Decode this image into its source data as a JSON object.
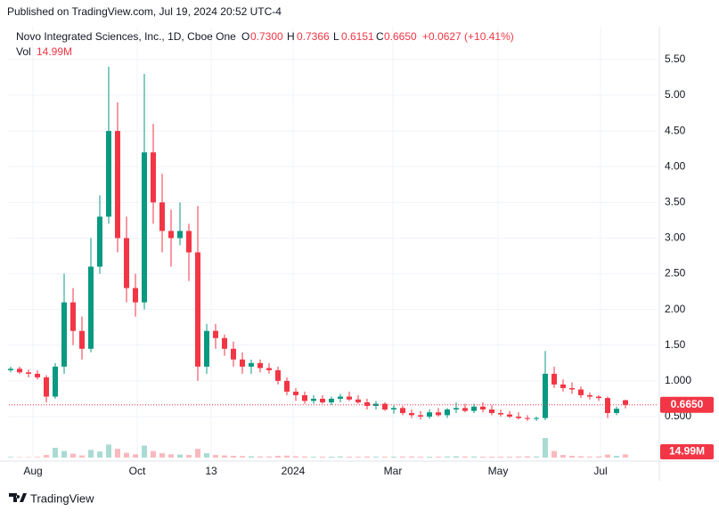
{
  "published": "Published on TradingView.com, Jul 19, 2024 20:52 UTC-4",
  "footer": "TradingView",
  "chart_data": {
    "type": "candlestick",
    "title": "Novo Integrated Sciences, Inc., 1D, Cboe One",
    "ohlc_header": {
      "o_label": "O",
      "open": "0.7300",
      "h_label": "H",
      "high": "0.7366",
      "l_label": "L",
      "low": "0.6151",
      "c_label": "C",
      "close": "0.6650",
      "change": "+0.0627 (+10.41%)"
    },
    "volume_title": "Vol",
    "volume_header": "14.99M",
    "up_color": "#089981",
    "down_color": "#f23645",
    "grid": true,
    "ylim": [
      -0.086,
      5.96
    ],
    "yticks": [
      {
        "value": 0.5,
        "label": "0.500"
      },
      {
        "value": 1,
        "label": "1.000"
      },
      {
        "value": 1.5,
        "label": "1.50"
      },
      {
        "value": 2,
        "label": "2.00"
      },
      {
        "value": 2.5,
        "label": "2.50"
      },
      {
        "value": 3,
        "label": "3.00"
      },
      {
        "value": 3.5,
        "label": "3.50"
      },
      {
        "value": 4,
        "label": "4.00"
      },
      {
        "value": 4.5,
        "label": "4.50"
      },
      {
        "value": 5,
        "label": "5.00"
      },
      {
        "value": 5.5,
        "label": "5.50"
      }
    ],
    "xlim": [
      -0.2,
      72.6
    ],
    "xticks": [
      {
        "value": 2.5,
        "label": "Aug"
      },
      {
        "value": 14.2,
        "label": "Oct"
      },
      {
        "value": 22.5,
        "label": "13"
      },
      {
        "value": 31.7,
        "label": "2024"
      },
      {
        "value": 42.9,
        "label": "Mar"
      },
      {
        "value": 54.7,
        "label": "May"
      },
      {
        "value": 66.2,
        "label": "Jul"
      }
    ],
    "last_price": {
      "value": 0.665,
      "label": "0.6650"
    },
    "last_volume": {
      "value": 14.99,
      "label": "14.99M"
    },
    "candles": [
      [
        1.15,
        1.2,
        1.12,
        1.17
      ],
      [
        1.17,
        1.2,
        1.1,
        1.12
      ],
      [
        1.12,
        1.16,
        1.05,
        1.1
      ],
      [
        1.1,
        1.15,
        1.02,
        1.05
      ],
      [
        1.05,
        1.08,
        0.7,
        0.78
      ],
      [
        0.78,
        1.25,
        0.75,
        1.2
      ],
      [
        1.2,
        2.5,
        1.1,
        2.1
      ],
      [
        2.1,
        2.3,
        1.5,
        1.7
      ],
      [
        1.7,
        1.9,
        1.3,
        1.45
      ],
      [
        1.45,
        3.0,
        1.4,
        2.6
      ],
      [
        2.6,
        3.6,
        2.5,
        3.3
      ],
      [
        3.3,
        5.4,
        3.2,
        4.5
      ],
      [
        4.5,
        4.9,
        2.8,
        3.0
      ],
      [
        3.0,
        3.3,
        2.1,
        2.3
      ],
      [
        2.3,
        2.5,
        1.9,
        2.1
      ],
      [
        2.1,
        5.3,
        2.0,
        4.2
      ],
      [
        4.2,
        4.6,
        3.2,
        3.5
      ],
      [
        3.5,
        3.9,
        2.8,
        3.1
      ],
      [
        3.1,
        3.4,
        2.6,
        3.0
      ],
      [
        3.0,
        3.5,
        2.9,
        3.1
      ],
      [
        3.1,
        3.2,
        2.4,
        2.8
      ],
      [
        2.8,
        3.45,
        1.0,
        1.2
      ],
      [
        1.2,
        1.8,
        1.1,
        1.7
      ],
      [
        1.7,
        1.8,
        1.45,
        1.6
      ],
      [
        1.6,
        1.65,
        1.35,
        1.45
      ],
      [
        1.45,
        1.55,
        1.2,
        1.3
      ],
      [
        1.3,
        1.4,
        1.1,
        1.2
      ],
      [
        1.2,
        1.3,
        1.1,
        1.25
      ],
      [
        1.25,
        1.3,
        1.12,
        1.18
      ],
      [
        1.18,
        1.25,
        1.1,
        1.15
      ],
      [
        1.15,
        1.2,
        0.95,
        1.0
      ],
      [
        1.0,
        1.05,
        0.8,
        0.85
      ],
      [
        0.85,
        0.9,
        0.72,
        0.8
      ],
      [
        0.8,
        0.85,
        0.68,
        0.72
      ],
      [
        0.72,
        0.8,
        0.68,
        0.75
      ],
      [
        0.75,
        0.8,
        0.68,
        0.7
      ],
      [
        0.7,
        0.78,
        0.66,
        0.75
      ],
      [
        0.75,
        0.82,
        0.7,
        0.78
      ],
      [
        0.78,
        0.85,
        0.72,
        0.74
      ],
      [
        0.74,
        0.8,
        0.68,
        0.7
      ],
      [
        0.7,
        0.75,
        0.6,
        0.65
      ],
      [
        0.65,
        0.72,
        0.6,
        0.68
      ],
      [
        0.68,
        0.7,
        0.58,
        0.6
      ],
      [
        0.6,
        0.66,
        0.54,
        0.62
      ],
      [
        0.62,
        0.65,
        0.52,
        0.55
      ],
      [
        0.55,
        0.6,
        0.48,
        0.52
      ],
      [
        0.52,
        0.58,
        0.46,
        0.5
      ],
      [
        0.5,
        0.6,
        0.47,
        0.56
      ],
      [
        0.56,
        0.62,
        0.5,
        0.52
      ],
      [
        0.52,
        0.62,
        0.48,
        0.6
      ],
      [
        0.6,
        0.7,
        0.55,
        0.62
      ],
      [
        0.62,
        0.68,
        0.56,
        0.58
      ],
      [
        0.58,
        0.68,
        0.55,
        0.64
      ],
      [
        0.64,
        0.7,
        0.56,
        0.6
      ],
      [
        0.6,
        0.66,
        0.52,
        0.55
      ],
      [
        0.55,
        0.6,
        0.5,
        0.53
      ],
      [
        0.53,
        0.58,
        0.48,
        0.5
      ],
      [
        0.5,
        0.56,
        0.46,
        0.48
      ],
      [
        0.48,
        0.52,
        0.44,
        0.47
      ],
      [
        0.47,
        0.5,
        0.44,
        0.48
      ],
      [
        0.48,
        1.42,
        0.45,
        1.1
      ],
      [
        1.1,
        1.2,
        0.9,
        0.95
      ],
      [
        0.95,
        1.02,
        0.85,
        0.9
      ],
      [
        0.9,
        0.98,
        0.82,
        0.88
      ],
      [
        0.88,
        0.92,
        0.76,
        0.8
      ],
      [
        0.8,
        0.84,
        0.74,
        0.78
      ],
      [
        0.78,
        0.8,
        0.72,
        0.76
      ],
      [
        0.76,
        0.78,
        0.48,
        0.55
      ],
      [
        0.55,
        0.64,
        0.52,
        0.61
      ],
      [
        0.73,
        0.7366,
        0.6151,
        0.665
      ]
    ],
    "volume": [
      3,
      2,
      2,
      3,
      12,
      45,
      30,
      18,
      10,
      35,
      28,
      60,
      40,
      22,
      15,
      55,
      30,
      20,
      15,
      14,
      12,
      40,
      20,
      12,
      10,
      8,
      7,
      6,
      5,
      5,
      8,
      9,
      6,
      5,
      4,
      4,
      4,
      5,
      4,
      4,
      5,
      4,
      4,
      4,
      5,
      5,
      4,
      4,
      4,
      5,
      6,
      5,
      5,
      4,
      4,
      4,
      4,
      5,
      6,
      5,
      90,
      30,
      12,
      8,
      6,
      5,
      5,
      14,
      8,
      14.99
    ]
  }
}
